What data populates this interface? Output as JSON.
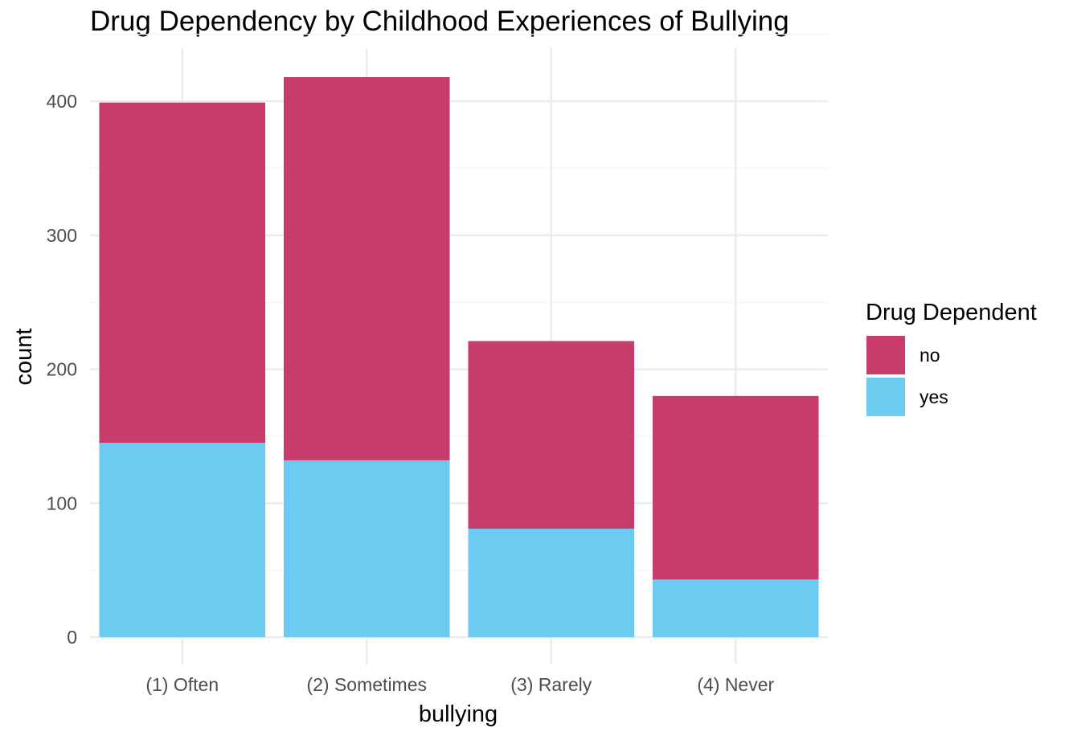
{
  "chart_data": {
    "type": "bar",
    "stacked": true,
    "title": "Drug Dependency by Childhood Experiences of Bullying",
    "xlabel": "bullying",
    "ylabel": "count",
    "categories": [
      "(1) Often",
      "(2) Sometimes",
      "(3) Rarely",
      "(4) Never"
    ],
    "series": [
      {
        "name": "yes",
        "color": "#6BCBF0",
        "values": [
          145,
          132,
          81,
          43
        ]
      },
      {
        "name": "no",
        "color": "#C83B6D",
        "values": [
          254,
          286,
          140,
          137
        ]
      }
    ],
    "ylim": [
      0,
      450
    ],
    "yticks": [
      0,
      100,
      200,
      300,
      400
    ],
    "grid": true,
    "legend": {
      "title": "Drug Dependent",
      "placement": "right",
      "entries": [
        {
          "label": "no",
          "color": "#C83B6D"
        },
        {
          "label": "yes",
          "color": "#6BCBF0"
        }
      ]
    }
  }
}
